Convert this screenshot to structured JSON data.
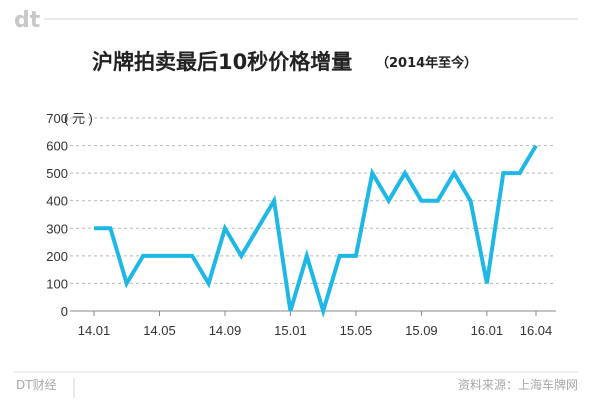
{
  "brand": {
    "logo_text": "dt",
    "footer_name": "DT财经"
  },
  "source": "资料来源：上海车牌网",
  "colors": {
    "line": "#1fb8e6",
    "grid": "#b9b9b9",
    "axis": "#8a8a8a",
    "text": "#333333"
  },
  "chart_data": {
    "type": "line",
    "title": "沪牌拍卖最后10秒价格增量",
    "subtitle": "（2014年至今）",
    "ylabel": "( 元 )",
    "ylim": [
      0,
      700
    ],
    "yticks": [
      0,
      100,
      200,
      300,
      400,
      500,
      600,
      700
    ],
    "grid": true,
    "x": [
      "2014-01",
      "2014-02",
      "2014-03",
      "2014-04",
      "2014-05",
      "2014-06",
      "2014-07",
      "2014-08",
      "2014-09",
      "2014-10",
      "2014-11",
      "2014-12",
      "2015-01",
      "2015-02",
      "2015-03",
      "2015-04",
      "2015-05",
      "2015-06",
      "2015-07",
      "2015-08",
      "2015-09",
      "2015-10",
      "2015-11",
      "2015-12",
      "2016-01",
      "2016-02",
      "2016-03",
      "2016-04"
    ],
    "xtick_labels": [
      "14.01",
      "14.05",
      "14.09",
      "15.01",
      "15.05",
      "15.09",
      "16.01",
      "16.04"
    ],
    "xtick_index": [
      0,
      4,
      8,
      12,
      16,
      20,
      24,
      27
    ],
    "series": [
      {
        "values": [
          300,
          300,
          100,
          200,
          200,
          200,
          200,
          100,
          300,
          200,
          300,
          400,
          0,
          200,
          0,
          200,
          200,
          500,
          400,
          500,
          400,
          400,
          500,
          400,
          100,
          500,
          500,
          600
        ]
      }
    ]
  }
}
